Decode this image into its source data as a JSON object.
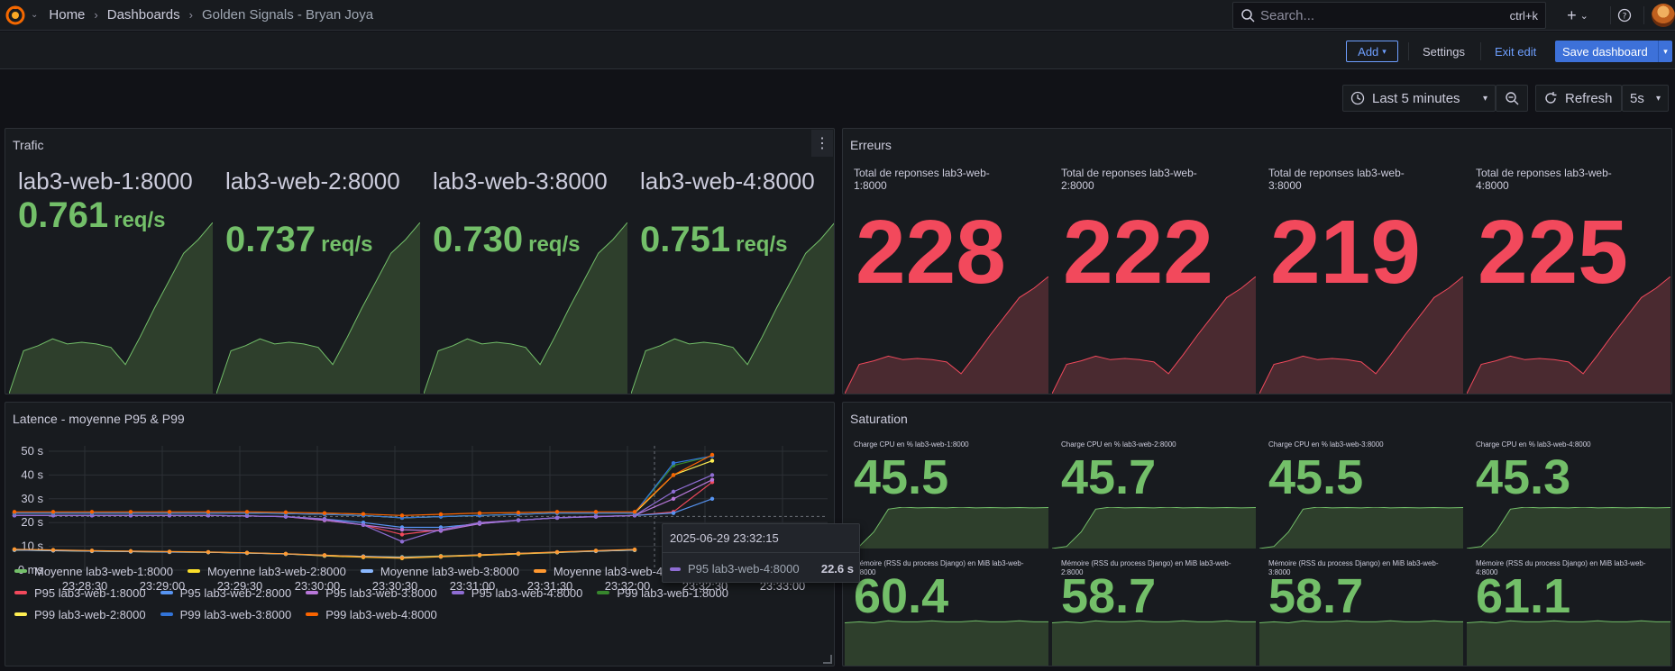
{
  "breadcrumb": {
    "home": "Home",
    "dashboards": "Dashboards",
    "current": "Golden Signals - Bryan Joya"
  },
  "search": {
    "placeholder": "Search...",
    "shortcut": "ctrl+k"
  },
  "toolbar": {
    "add": "Add",
    "settings": "Settings",
    "exit_edit": "Exit edit",
    "save": "Save dashboard"
  },
  "timepicker": {
    "range": "Last 5 minutes",
    "refresh": "Refresh",
    "interval": "5s"
  },
  "colors": {
    "green": "#73bf69",
    "red": "#f2495c",
    "accent": "#6e9fff",
    "primary": "#3d71d9"
  },
  "trafic": {
    "title": "Trafic",
    "unit": "req/s",
    "items": [
      {
        "name": "lab3-web-1:8000",
        "value": "0.761"
      },
      {
        "name": "lab3-web-2:8000",
        "value": "0.737"
      },
      {
        "name": "lab3-web-3:8000",
        "value": "0.730"
      },
      {
        "name": "lab3-web-4:8000",
        "value": "0.751"
      }
    ]
  },
  "erreurs": {
    "title": "Erreurs",
    "items": [
      {
        "name": "Total de reponses lab3-web-1:8000",
        "value": "228"
      },
      {
        "name": "Total de reponses lab3-web-2:8000",
        "value": "222"
      },
      {
        "name": "Total de reponses lab3-web-3:8000",
        "value": "219"
      },
      {
        "name": "Total de reponses lab3-web-4:8000",
        "value": "225"
      }
    ]
  },
  "saturation": {
    "title": "Saturation",
    "cpu": [
      {
        "name": "Charge CPU en % lab3-web-1:8000",
        "value": "45.5"
      },
      {
        "name": "Charge CPU en % lab3-web-2:8000",
        "value": "45.7"
      },
      {
        "name": "Charge CPU en % lab3-web-3:8000",
        "value": "45.5"
      },
      {
        "name": "Charge CPU en % lab3-web-4:8000",
        "value": "45.3"
      }
    ],
    "mem": [
      {
        "name": "Mémoire (RSS du process Django) en MiB lab3-web-1:8000",
        "value": "60.4"
      },
      {
        "name": "Mémoire (RSS du process Django) en MiB lab3-web-2:8000",
        "value": "58.7"
      },
      {
        "name": "Mémoire (RSS du process Django) en MiB lab3-web-3:8000",
        "value": "58.7"
      },
      {
        "name": "Mémoire (RSS du process Django) en MiB lab3-web-4:8000",
        "value": "61.1"
      }
    ]
  },
  "latence": {
    "title": "Latence - moyenne P95 & P99",
    "tooltip": {
      "time": "2025-06-29 23:32:15",
      "series": "P95 lab3-web-4:8000",
      "value": "22.6 s"
    }
  },
  "chart_data": {
    "type": "line",
    "ylim": [
      0,
      50
    ],
    "yticks": [
      "0 ms",
      "10 s",
      "20 s",
      "30 s",
      "40 s",
      "50 s"
    ],
    "xticks": [
      "23:28:30",
      "23:29:00",
      "23:29:30",
      "23:30:00",
      "23:30:30",
      "23:31:00",
      "23:31:30",
      "23:32:00",
      "23:32:30",
      "23:33:00"
    ],
    "series": [
      {
        "name": "Moyenne lab3-web-1:8000",
        "color": "#73bf69",
        "values": [
          8.5,
          8.2,
          8,
          7.8,
          7.6,
          7.5,
          7.2,
          6.8,
          6.2,
          5.8,
          5.5,
          6,
          6.4,
          7,
          7.5,
          8,
          8.5
        ]
      },
      {
        "name": "Moyenne lab3-web-2:8000",
        "color": "#fade2a",
        "values": [
          8.5,
          8.3,
          8,
          7.8,
          7.6,
          7.5,
          7.2,
          6.8,
          6,
          5.4,
          5,
          5.6,
          6.2,
          6.8,
          7.4,
          8,
          8.4
        ]
      },
      {
        "name": "Moyenne lab3-web-3:8000",
        "color": "#8ab8ff",
        "values": [
          8.5,
          8.2,
          8,
          7.8,
          7.6,
          7.5,
          7.2,
          6.8,
          6.2,
          5.8,
          5.4,
          5.8,
          6.4,
          7,
          7.5,
          8,
          8.5
        ]
      },
      {
        "name": "Moyenne lab3-web-4:8000",
        "color": "#ff9830",
        "values": [
          8.8,
          8.5,
          8.2,
          8,
          7.8,
          7.6,
          7.3,
          6.9,
          6.3,
          5.6,
          5.2,
          5.8,
          6.4,
          7,
          7.6,
          8.2,
          8.7
        ]
      },
      {
        "name": "P95 lab3-web-1:8000",
        "color": "#f2495c",
        "values": [
          23,
          23,
          23,
          23,
          23,
          23,
          22.8,
          22.5,
          21,
          19,
          15,
          17,
          20,
          21,
          22,
          22.5,
          23,
          24.5,
          37
        ]
      },
      {
        "name": "P95 lab3-web-2:8000",
        "color": "#5794f2",
        "values": [
          23,
          23,
          23,
          23,
          23,
          23,
          22.8,
          22.5,
          21.5,
          20,
          18,
          18,
          19.5,
          21,
          22,
          22.5,
          23,
          24,
          30
        ]
      },
      {
        "name": "P95 lab3-web-3:8000",
        "color": "#b877d9",
        "values": [
          23,
          23,
          23,
          23,
          23,
          23,
          22.8,
          22.5,
          21,
          19,
          17,
          16.5,
          19.5,
          21,
          22,
          22.5,
          23,
          30,
          38
        ]
      },
      {
        "name": "P95 lab3-web-4:8000",
        "color": "#8f6dd4",
        "values": [
          23,
          23,
          23,
          23,
          23,
          23,
          22.8,
          22.5,
          21.5,
          19,
          12,
          17,
          20,
          21,
          22,
          22.6,
          23,
          33,
          40
        ]
      },
      {
        "name": "P99 lab3-web-1:8000",
        "color": "#37872d",
        "values": [
          24,
          24,
          24,
          24,
          24,
          24,
          24,
          23.8,
          23.5,
          23,
          22,
          22.5,
          23,
          23.5,
          24,
          24,
          24,
          44,
          48
        ]
      },
      {
        "name": "P99 lab3-web-2:8000",
        "color": "#ffee52",
        "values": [
          24,
          24,
          24,
          24,
          24,
          24,
          24,
          23.8,
          23.5,
          23,
          22,
          22.5,
          23,
          23.5,
          24,
          24,
          24,
          40,
          46
        ]
      },
      {
        "name": "P99 lab3-web-3:8000",
        "color": "#3274d9",
        "values": [
          24,
          24,
          24,
          24,
          24,
          24,
          24,
          23.8,
          23.5,
          23,
          22,
          22.5,
          23,
          23.5,
          24,
          24,
          24,
          45,
          48
        ]
      },
      {
        "name": "P99 lab3-web-4:8000",
        "color": "#fa6400",
        "values": [
          24.5,
          24.5,
          24.5,
          24.5,
          24.5,
          24.5,
          24.5,
          24.3,
          24,
          23.6,
          23,
          23.5,
          24,
          24.2,
          24.5,
          24.5,
          24.5,
          40,
          48.5
        ]
      }
    ]
  }
}
